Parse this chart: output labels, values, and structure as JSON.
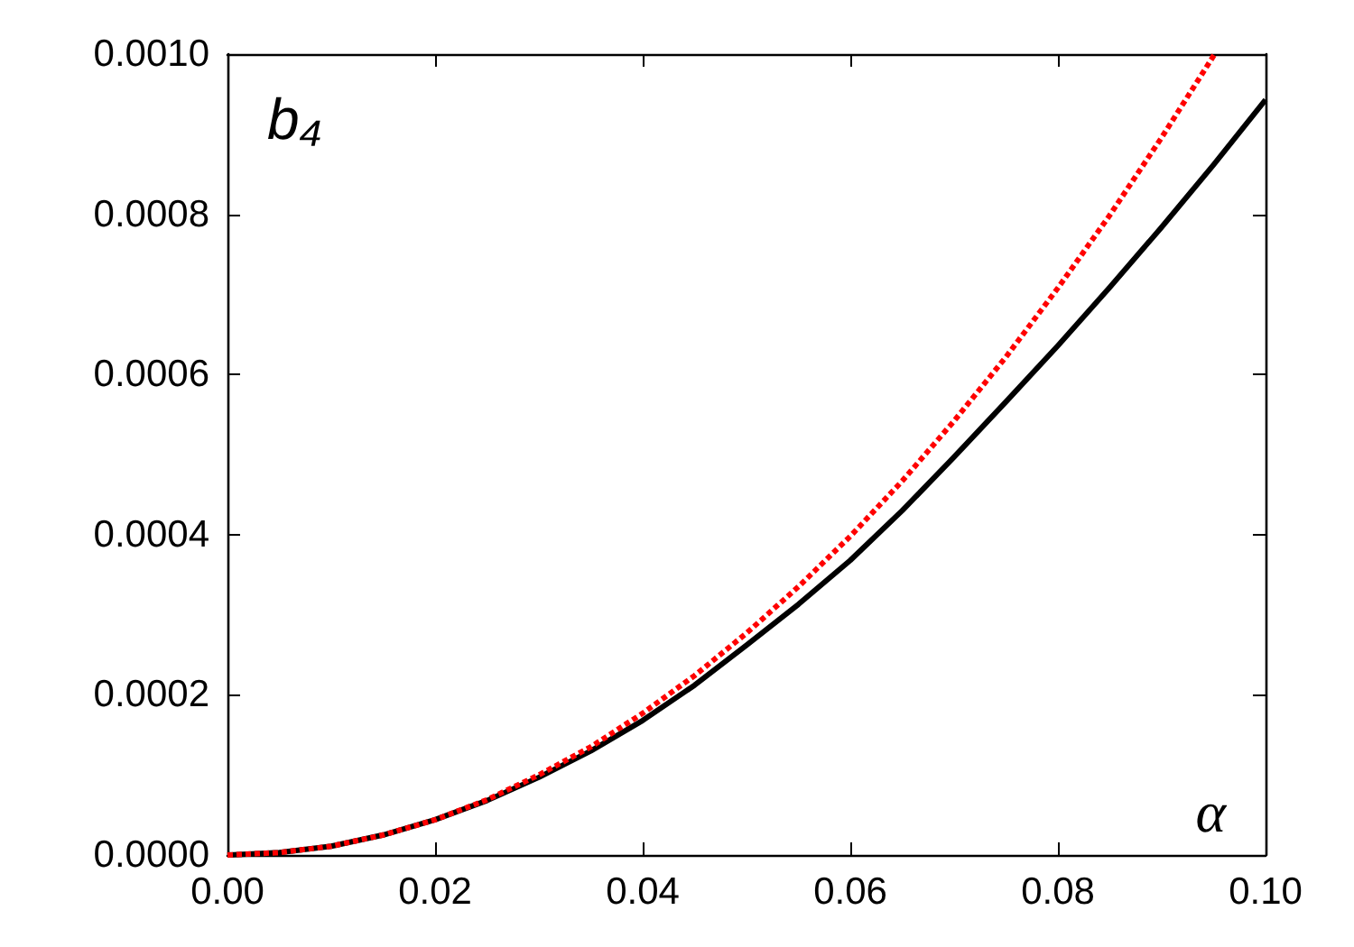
{
  "chart_data": {
    "type": "line",
    "xlabel": "α",
    "ylabel": "b₄",
    "xlim": [
      0,
      0.1
    ],
    "xticks": [
      {
        "value": 0,
        "label": "0.00"
      },
      0.02,
      0.04,
      0.06,
      0.08,
      {
        "value": 0.1,
        "label": "0.10"
      }
    ],
    "ylim": [
      0,
      0.001
    ],
    "yticks": [
      {
        "value": 0,
        "label": "0.0000"
      },
      0.0002,
      0.0004,
      0.0006,
      0.0008,
      {
        "value": 0.001,
        "label": "0.0010"
      }
    ],
    "grid": false,
    "marker": "none",
    "series": [
      {
        "color": "#000000",
        "line_style": "solid",
        "x": [
          0,
          0.005,
          0.01,
          0.015,
          0.02,
          0.025,
          0.03,
          0.035,
          0.04,
          0.045,
          0.05,
          0.055,
          0.06,
          0.065,
          0.07,
          0.075,
          0.08,
          0.085,
          0.09,
          0.095,
          0.1
        ],
        "values": [
          0,
          3e-06,
          1.1e-05,
          2.5e-05,
          4.4e-05,
          6.8e-05,
          9.7e-05,
          0.00013,
          0.000168,
          0.000212,
          0.000262,
          0.000313,
          0.000368,
          0.00043,
          0.000497,
          0.000566,
          0.000636,
          0.000709,
          0.000784,
          0.000862,
          0.000943
        ]
      },
      {
        "color": "#ff0000",
        "line_style": "dotted",
        "x": [
          0,
          0.005,
          0.01,
          0.015,
          0.02,
          0.025,
          0.03,
          0.035,
          0.04,
          0.045,
          0.05,
          0.055,
          0.06,
          0.065,
          0.07,
          0.075,
          0.08,
          0.085,
          0.09,
          0.0951
        ],
        "values": [
          0,
          3e-06,
          1.1e-05,
          2.5e-05,
          4.4e-05,
          6.9e-05,
          0.0001,
          0.000135,
          0.000177,
          0.000224,
          0.000277,
          0.000335,
          0.000398,
          0.000467,
          0.000542,
          0.000622,
          0.000708,
          0.000799,
          0.000896,
          0.001
        ]
      }
    ]
  }
}
